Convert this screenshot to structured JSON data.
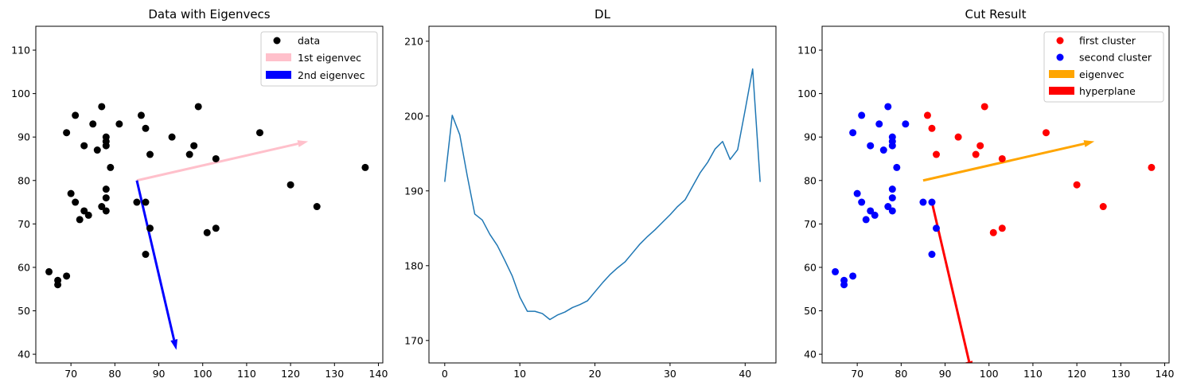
{
  "chart_data": [
    {
      "type": "scatter",
      "title": "Data with Eigenvecs",
      "xlabel": "",
      "ylabel": "",
      "xlim": [
        62,
        141
      ],
      "ylim": [
        38,
        115.5
      ],
      "xticks": [
        70,
        80,
        90,
        100,
        110,
        120,
        130,
        140
      ],
      "yticks": [
        40,
        50,
        60,
        70,
        80,
        90,
        100,
        110
      ],
      "grid": false,
      "legend_position": "top-right",
      "series": [
        {
          "name": "data",
          "kind": "points",
          "color": "#000000",
          "points": [
            [
              65,
              59
            ],
            [
              67,
              57
            ],
            [
              67,
              56
            ],
            [
              69,
              58
            ],
            [
              69,
              91
            ],
            [
              70,
              77
            ],
            [
              71,
              75
            ],
            [
              71,
              95
            ],
            [
              72,
              71
            ],
            [
              73,
              73
            ],
            [
              73,
              88
            ],
            [
              74,
              72
            ],
            [
              75,
              93
            ],
            [
              76,
              87
            ],
            [
              77,
              74
            ],
            [
              77,
              97
            ],
            [
              78,
              73
            ],
            [
              78,
              76
            ],
            [
              78,
              78
            ],
            [
              78,
              88
            ],
            [
              78,
              89
            ],
            [
              78,
              90
            ],
            [
              79,
              83
            ],
            [
              81,
              93
            ],
            [
              85,
              75
            ],
            [
              86,
              95
            ],
            [
              87,
              63
            ],
            [
              87,
              75
            ],
            [
              87,
              92
            ],
            [
              88,
              69
            ],
            [
              88,
              86
            ],
            [
              93,
              90
            ],
            [
              97,
              86
            ],
            [
              98,
              88
            ],
            [
              99,
              97
            ],
            [
              101,
              68
            ],
            [
              103,
              69
            ],
            [
              103,
              85
            ],
            [
              113,
              91
            ],
            [
              120,
              79
            ],
            [
              126,
              74
            ],
            [
              137,
              83
            ]
          ]
        },
        {
          "name": "1st eigenvec",
          "kind": "arrow",
          "color": "#ffc0cb",
          "from": [
            85,
            80
          ],
          "to": [
            124,
            89
          ]
        },
        {
          "name": "2nd eigenvec",
          "kind": "arrow",
          "color": "#0000ff",
          "from": [
            85,
            80
          ],
          "to": [
            94,
            41
          ]
        }
      ]
    },
    {
      "type": "line",
      "title": "DL",
      "xlabel": "",
      "ylabel": "",
      "xlim": [
        -2.1,
        44.1
      ],
      "ylim": [
        167,
        212
      ],
      "xticks": [
        0,
        10,
        20,
        30,
        40
      ],
      "yticks": [
        170,
        180,
        190,
        200,
        210
      ],
      "grid": false,
      "legend_position": "none",
      "series": [
        {
          "name": "",
          "kind": "line",
          "color": "#1f77b4",
          "x": [
            0,
            1,
            2,
            3,
            4,
            5,
            6,
            7,
            8,
            9,
            10,
            11,
            12,
            13,
            14,
            15,
            16,
            17,
            18,
            19,
            20,
            21,
            22,
            23,
            24,
            25,
            26,
            27,
            28,
            29,
            30,
            31,
            32,
            33,
            34,
            35,
            36,
            37,
            38,
            39,
            40,
            41,
            42
          ],
          "y": [
            191.2,
            200.1,
            197.5,
            192.0,
            186.9,
            186.1,
            184.2,
            182.7,
            180.7,
            178.6,
            175.8,
            173.9,
            173.9,
            173.6,
            172.8,
            173.4,
            173.8,
            174.4,
            174.8,
            175.3,
            176.5,
            177.7,
            178.8,
            179.7,
            180.5,
            181.7,
            182.9,
            183.9,
            184.8,
            185.8,
            186.8,
            187.9,
            188.8,
            190.6,
            192.4,
            193.8,
            195.6,
            196.6,
            194.2,
            195.5,
            200.8,
            206.3,
            191.2
          ]
        }
      ]
    },
    {
      "type": "scatter",
      "title": "Cut Result",
      "xlabel": "",
      "ylabel": "",
      "xlim": [
        62,
        141
      ],
      "ylim": [
        38,
        115.5
      ],
      "xticks": [
        70,
        80,
        90,
        100,
        110,
        120,
        130,
        140
      ],
      "yticks": [
        40,
        50,
        60,
        70,
        80,
        90,
        100,
        110
      ],
      "grid": false,
      "legend_position": "top-right",
      "series": [
        {
          "name": "first cluster",
          "kind": "points",
          "color": "#ff0000",
          "points": [
            [
              86,
              95
            ],
            [
              87,
              92
            ],
            [
              88,
              86
            ],
            [
              93,
              90
            ],
            [
              97,
              86
            ],
            [
              98,
              88
            ],
            [
              99,
              97
            ],
            [
              101,
              68
            ],
            [
              103,
              69
            ],
            [
              103,
              85
            ],
            [
              113,
              91
            ],
            [
              120,
              79
            ],
            [
              126,
              74
            ],
            [
              137,
              83
            ]
          ]
        },
        {
          "name": "second cluster",
          "kind": "points",
          "color": "#0000ff",
          "points": [
            [
              65,
              59
            ],
            [
              67,
              57
            ],
            [
              67,
              56
            ],
            [
              69,
              58
            ],
            [
              69,
              91
            ],
            [
              70,
              77
            ],
            [
              71,
              75
            ],
            [
              71,
              95
            ],
            [
              72,
              71
            ],
            [
              73,
              73
            ],
            [
              73,
              88
            ],
            [
              74,
              72
            ],
            [
              75,
              93
            ],
            [
              76,
              87
            ],
            [
              77,
              74
            ],
            [
              77,
              97
            ],
            [
              78,
              73
            ],
            [
              78,
              76
            ],
            [
              78,
              78
            ],
            [
              78,
              88
            ],
            [
              78,
              89
            ],
            [
              78,
              90
            ],
            [
              79,
              83
            ],
            [
              81,
              93
            ],
            [
              85,
              75
            ],
            [
              87,
              63
            ],
            [
              87,
              75
            ],
            [
              88,
              69
            ]
          ]
        },
        {
          "name": "eigenvec",
          "kind": "arrow",
          "color": "#ffa500",
          "from": [
            85,
            80
          ],
          "to": [
            124,
            89
          ]
        },
        {
          "name": "hyperplane",
          "kind": "arrow",
          "color": "#ff0000",
          "from": [
            87,
            75
          ],
          "to": [
            96,
            36
          ]
        }
      ]
    }
  ]
}
